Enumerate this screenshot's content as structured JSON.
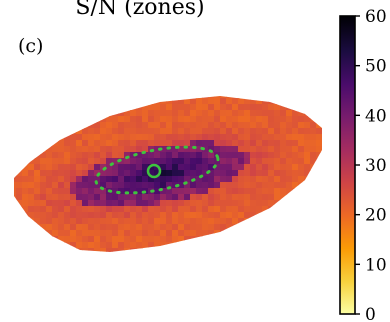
{
  "chart_data": {
    "type": "heatmap",
    "title": "S/N (zones)",
    "panel_label": "(c)",
    "colorbar": {
      "min": 0,
      "max": 60,
      "tick_labels": [
        "0",
        "10",
        "20",
        "30",
        "40",
        "50",
        "60"
      ],
      "colormap": "inferno_r",
      "stops": [
        "#fcffa4",
        "#f7d13d",
        "#fb9b06",
        "#ed6925",
        "#cf4446",
        "#a52c60",
        "#781c6d",
        "#4a0c6b",
        "#1b0c41",
        "#000004"
      ]
    },
    "zone_values_summary": {
      "outer_region": 22,
      "inner_region": 38,
      "peak": 55
    },
    "overlays": {
      "ellipse_color": "#3ec43e",
      "ellipse_style": "dotted",
      "center_marker": "circle"
    }
  }
}
